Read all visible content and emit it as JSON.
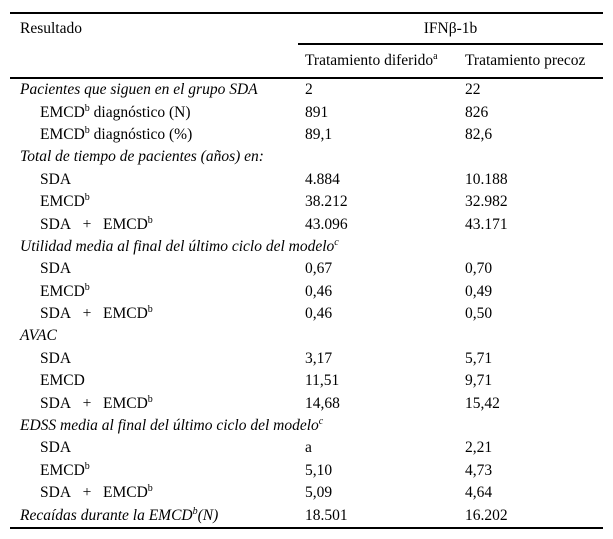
{
  "header": {
    "col_resultado": "Resultado",
    "group": "IFNβ-1b",
    "sub_diferido_pre": "Tratamiento diferido",
    "sub_diferido_sup": "a",
    "sub_precoz": "Tratamiento precoz"
  },
  "body": {
    "rows": [
      {
        "pre": "Pacientes que siguen en el grupo SDA",
        "c1": "2",
        "c2": "22"
      },
      {
        "pre": "EMCD",
        "sup": "b",
        "post": " diagnóstico (N)",
        "c1": "891",
        "c2": "826"
      },
      {
        "pre": "EMCD",
        "sup": "b",
        "post": " diagnóstico (%)",
        "c1": "89,1",
        "c2": "82,6"
      },
      {
        "pre": "Total de tiempo de pacientes (años) en:"
      },
      {
        "pre": "SDA",
        "c1": "4.884",
        "c2": "10.188"
      },
      {
        "pre": "EMCD",
        "sup": "b",
        "c1": "38.212",
        "c2": "32.982"
      },
      {
        "pre": "SDA   +   EMCD",
        "sup": "b",
        "c1": "43.096",
        "c2": "43.171"
      },
      {
        "pre": "Utilidad media al final del último ciclo del modelo",
        "sup": "c"
      },
      {
        "pre": "SDA",
        "c1": "0,67",
        "c2": "0,70"
      },
      {
        "pre": "EMCD",
        "sup": "b",
        "c1": "0,46",
        "c2": "0,49"
      },
      {
        "pre": "SDA   +   EMCD",
        "sup": "b",
        "c1": "0,46",
        "c2": "0,50"
      },
      {
        "pre": "AVAC"
      },
      {
        "pre": "SDA",
        "c1": "3,17",
        "c2": "5,71"
      },
      {
        "pre": "EMCD",
        "c1": "11,51",
        "c2": "9,71"
      },
      {
        "pre": "SDA   +   EMCD",
        "sup": "b",
        "c1": "14,68",
        "c2": "15,42"
      },
      {
        "pre": "EDSS media al final del último ciclo del modelo",
        "sup": "c"
      },
      {
        "pre": "SDA",
        "c1": "a",
        "c2": "2,21"
      },
      {
        "pre": "EMCD",
        "sup": "b",
        "c1": "5,10",
        "c2": "4,73"
      },
      {
        "pre": "SDA   +   EMCD",
        "sup": "b",
        "c1": "5,09",
        "c2": "4,64"
      },
      {
        "pre": "Recaídas durante la EMCD",
        "sup": "b",
        "post": "(N)",
        "c1": "18.501",
        "c2": "16.202"
      }
    ]
  }
}
